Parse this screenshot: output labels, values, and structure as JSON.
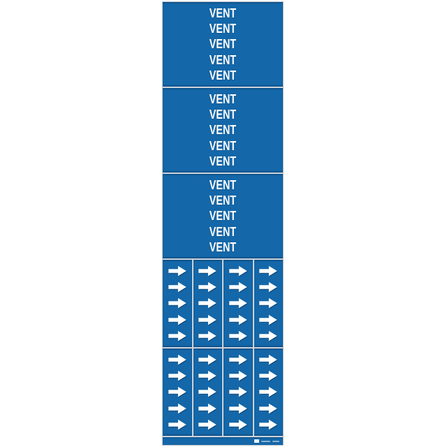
{
  "card": {
    "label": "VENT",
    "colors": {
      "blue": "#1467a8",
      "card_border": "#b9c1cb",
      "divider": "#ccd4dc",
      "text": "#ffffff",
      "arrow": "#ffffff",
      "arrow_shadow": "rgba(10,35,70,0.45)"
    },
    "vent_panels": [
      {
        "lines": [
          "VENT",
          "VENT",
          "VENT",
          "VENT",
          "VENT"
        ]
      },
      {
        "lines": [
          "VENT",
          "VENT",
          "VENT",
          "VENT",
          "VENT"
        ]
      },
      {
        "lines": [
          "VENT",
          "VENT",
          "VENT",
          "VENT",
          "VENT"
        ]
      }
    ],
    "arrow_panels": [
      {
        "columns": 4,
        "rows": 5
      },
      {
        "columns": 4,
        "rows": 5
      }
    ],
    "arrow_icon": "right-arrow-icon",
    "footer": {
      "logo": "manufacturer-logo",
      "fine_print_segments": 2
    }
  }
}
